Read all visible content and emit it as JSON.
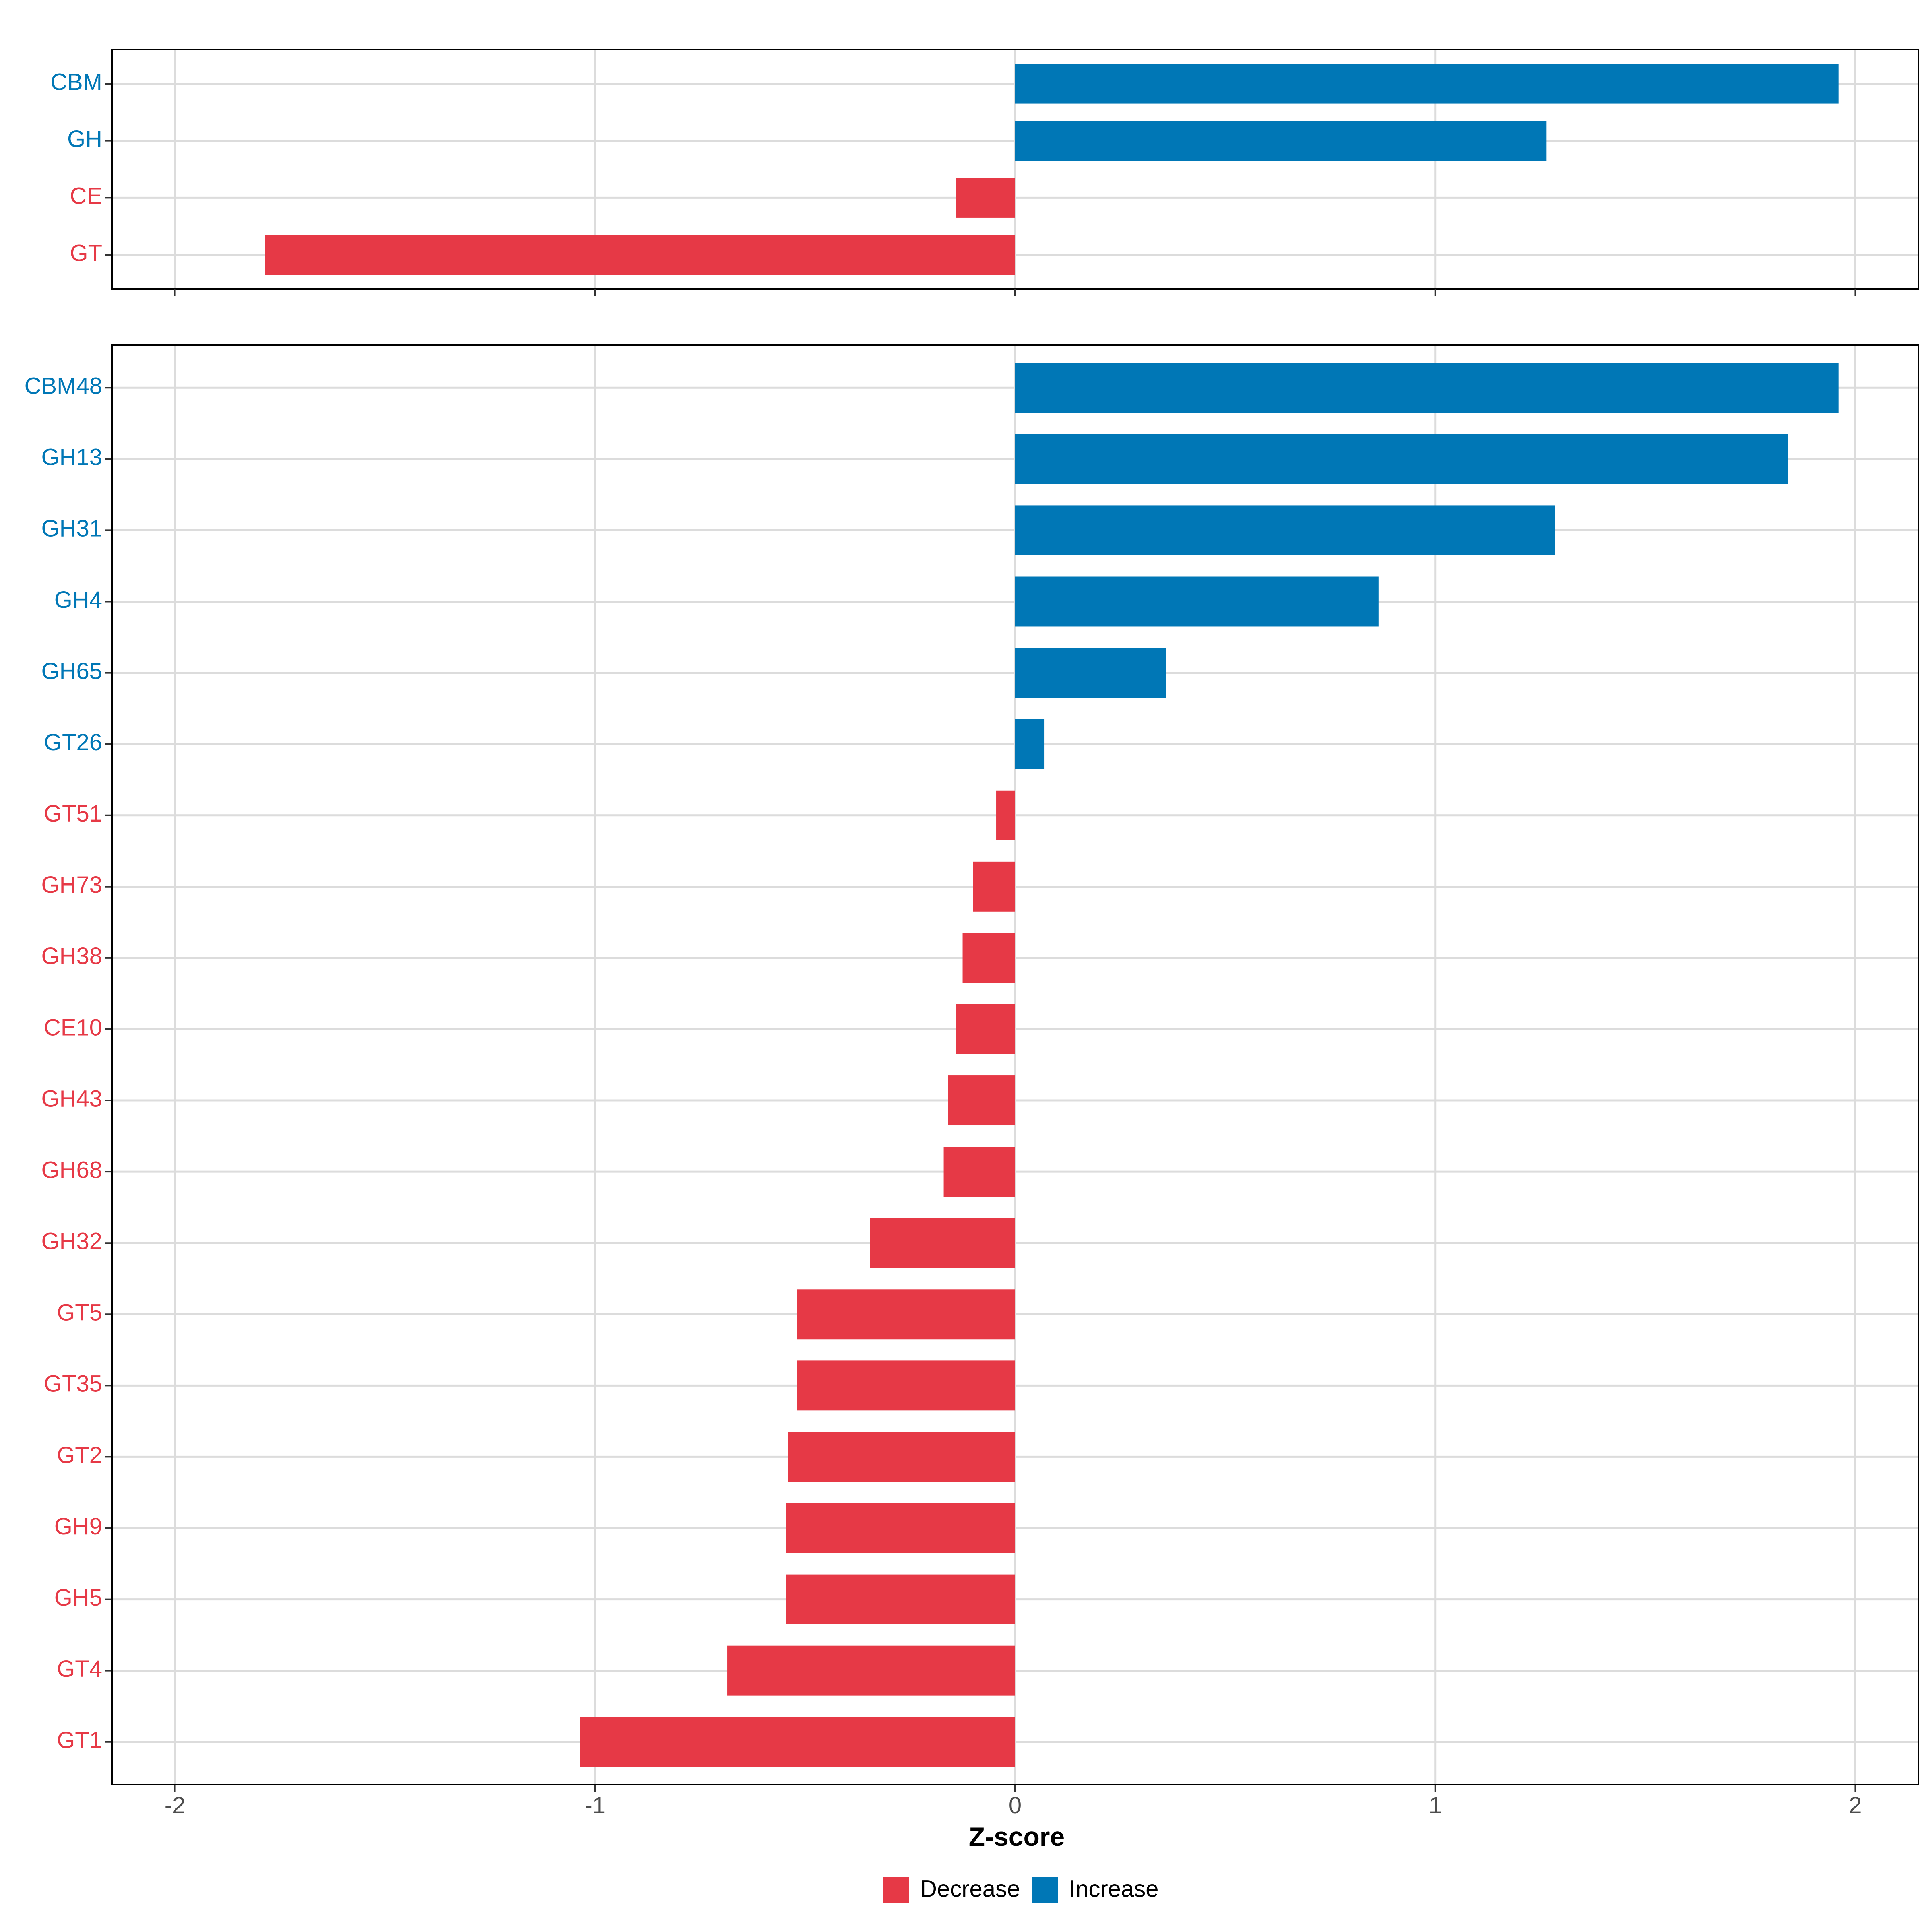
{
  "chart_data": [
    {
      "type": "bar",
      "orientation": "horizontal",
      "panel": "top",
      "categories": [
        "CBM",
        "GH",
        "CE",
        "GT"
      ],
      "values": [
        1.96,
        1.265,
        -0.14,
        -1.785
      ],
      "xlim": [
        -2.15,
        2.15
      ],
      "xticks": [
        -2,
        -1,
        0,
        1,
        2
      ],
      "grid": true
    },
    {
      "type": "bar",
      "orientation": "horizontal",
      "panel": "bottom",
      "categories": [
        "CBM48",
        "GH13",
        "GH31",
        "GH4",
        "GH65",
        "GT26",
        "GT51",
        "GH73",
        "GH38",
        "CE10",
        "GH43",
        "GH68",
        "GH32",
        "GT5",
        "GT35",
        "GT2",
        "GH9",
        "GH5",
        "GT4",
        "GT1"
      ],
      "values": [
        1.96,
        1.84,
        1.285,
        0.865,
        0.36,
        0.07,
        -0.045,
        -0.1,
        -0.125,
        -0.14,
        -0.16,
        -0.17,
        -0.345,
        -0.52,
        -0.52,
        -0.54,
        -0.545,
        -0.545,
        -0.685,
        -1.035
      ],
      "xlim": [
        -2.15,
        2.15
      ],
      "xticks": [
        -2,
        -1,
        0,
        1,
        2
      ],
      "xtick_labels": [
        "-2",
        "-1",
        "0",
        "1",
        "2"
      ],
      "xlabel": "Z-score",
      "grid": true
    }
  ],
  "legend": {
    "placement": "bottom-center",
    "items": [
      {
        "label": "Decrease",
        "color": "#e63946"
      },
      {
        "label": "Increase",
        "color": "#0077b6"
      }
    ]
  },
  "colors": {
    "increase": "#0077b6",
    "decrease": "#e63946",
    "grid": "#dcdcdc",
    "frame": "#000000"
  }
}
